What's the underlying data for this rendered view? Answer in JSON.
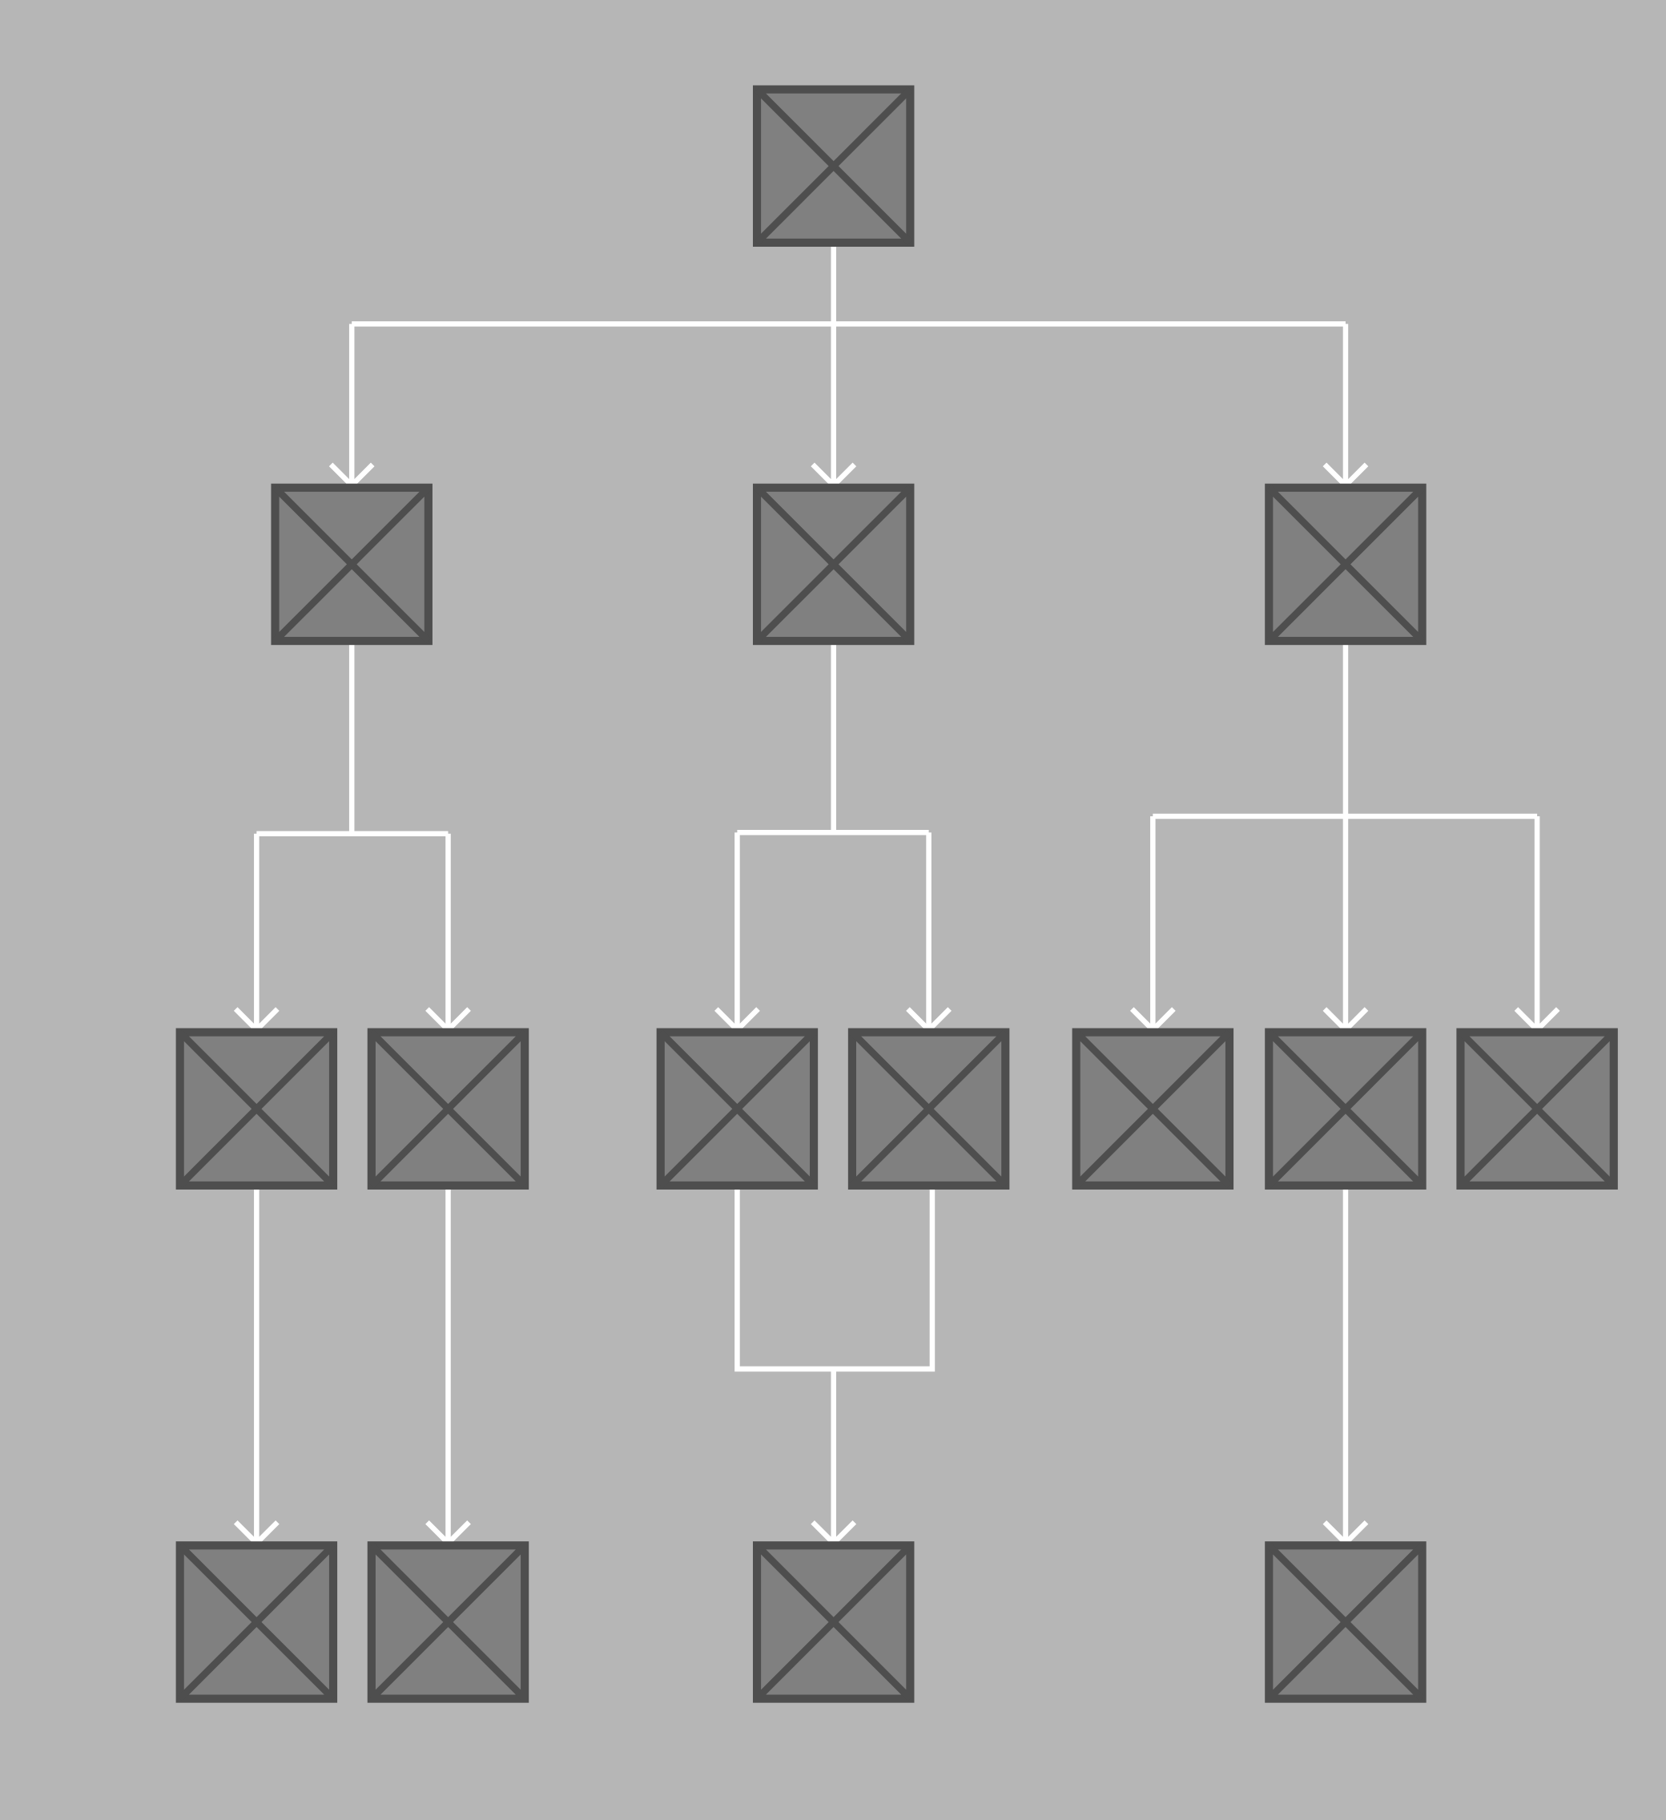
{
  "diagram": {
    "type": "tree",
    "colors": {
      "background": "#b6b6b6",
      "node_fill": "#808080",
      "node_stroke": "#4e4e4e",
      "edge": "#ffffff"
    },
    "node_icon": "image-placeholder-icon",
    "nodes": [
      {
        "id": "n0"
      },
      {
        "id": "n1"
      },
      {
        "id": "n2"
      },
      {
        "id": "n3"
      },
      {
        "id": "n4"
      },
      {
        "id": "n5"
      },
      {
        "id": "n6"
      },
      {
        "id": "n7"
      },
      {
        "id": "n8"
      },
      {
        "id": "n9"
      },
      {
        "id": "n10"
      },
      {
        "id": "n11"
      },
      {
        "id": "n12"
      },
      {
        "id": "n13"
      },
      {
        "id": "n14"
      }
    ],
    "edges": [
      {
        "from": "n0",
        "to": [
          "n1",
          "n2",
          "n3"
        ]
      },
      {
        "from": "n1",
        "to": [
          "n4",
          "n5"
        ]
      },
      {
        "from": "n2",
        "to": [
          "n6",
          "n7"
        ]
      },
      {
        "from": "n3",
        "to": [
          "n8",
          "n9",
          "n10"
        ]
      },
      {
        "from": "n4",
        "to": [
          "n11"
        ]
      },
      {
        "from": "n5",
        "to": [
          "n12"
        ]
      },
      {
        "from": [
          "n6",
          "n7"
        ],
        "to": "n13",
        "type": "merge"
      },
      {
        "from": "n9",
        "to": [
          "n14"
        ]
      }
    ]
  }
}
